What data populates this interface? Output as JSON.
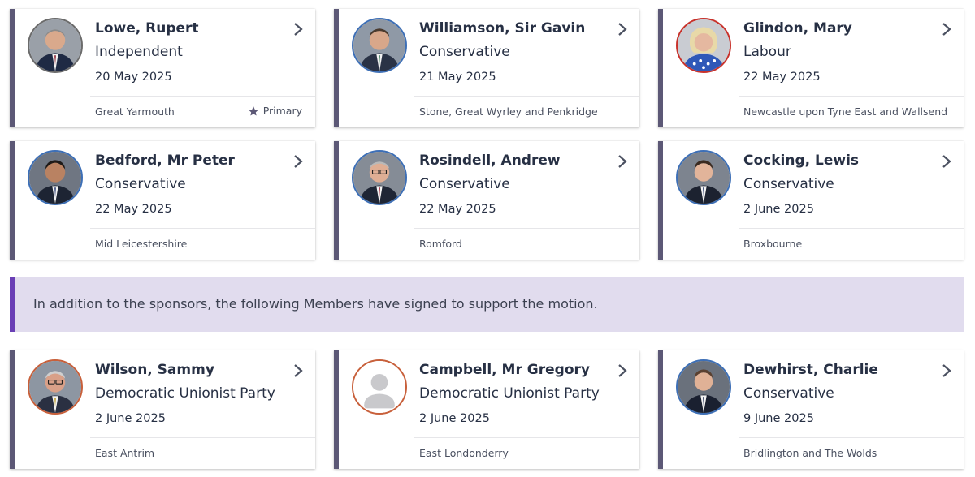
{
  "sponsors": [
    {
      "name": "Lowe, Rupert",
      "party": "Independent",
      "date": "20 May 2025",
      "constituency": "Great Yarmouth",
      "primary": "Primary",
      "ring_color": "#6b6b6b",
      "photo": "person-photo"
    },
    {
      "name": "Williamson, Sir Gavin",
      "party": "Conservative",
      "date": "21 May 2025",
      "constituency": "Stone, Great Wyrley and Penkridge",
      "ring_color": "#3d6fb6",
      "photo": "person-photo"
    },
    {
      "name": "Glindon, Mary",
      "party": "Labour",
      "date": "22 May 2025",
      "constituency": "Newcastle upon Tyne East and Wallsend",
      "ring_color": "#c8322b",
      "photo": "person-photo"
    },
    {
      "name": "Bedford, Mr Peter",
      "party": "Conservative",
      "date": "22 May 2025",
      "constituency": "Mid Leicestershire",
      "ring_color": "#3d6fb6",
      "photo": "person-photo"
    },
    {
      "name": "Rosindell, Andrew",
      "party": "Conservative",
      "date": "22 May 2025",
      "constituency": "Romford",
      "ring_color": "#3d6fb6",
      "photo": "person-photo"
    },
    {
      "name": "Cocking, Lewis",
      "party": "Conservative",
      "date": "2 June 2025",
      "constituency": "Broxbourne",
      "ring_color": "#3d6fb6",
      "photo": "person-photo"
    }
  ],
  "notice": {
    "text": "In addition to the sponsors, the following Members have signed to support the motion."
  },
  "supporters": [
    {
      "name": "Wilson, Sammy",
      "party": "Democratic Unionist Party",
      "date": "2 June 2025",
      "constituency": "East Antrim",
      "ring_color": "#c8603b",
      "photo": "person-photo"
    },
    {
      "name": "Campbell, Mr Gregory",
      "party": "Democratic Unionist Party",
      "date": "2 June 2025",
      "constituency": "East Londonderry",
      "ring_color": "#c8603b",
      "photo": "placeholder-avatar"
    },
    {
      "name": "Dewhirst, Charlie",
      "party": "Conservative",
      "date": "9 June 2025",
      "constituency": "Bridlington and The Wolds",
      "ring_color": "#3d6fb6",
      "photo": "person-photo"
    }
  ],
  "colors": {
    "card_accent": "#5c5876",
    "notice_bg": "#e1dcee",
    "notice_accent": "#6a3fb5",
    "text": "#273044"
  }
}
